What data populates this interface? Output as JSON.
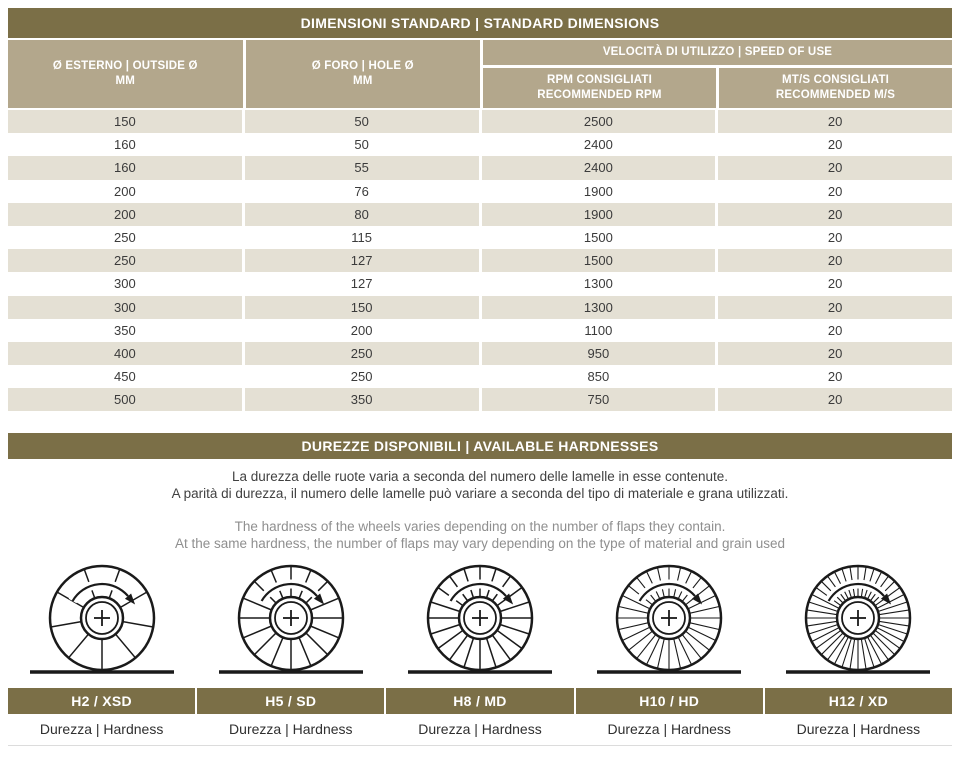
{
  "colors": {
    "olive": "#7b6f47",
    "header_tan": "#b3a78c",
    "row_stripe": "#e4e0d4"
  },
  "dimensions_table": {
    "title": "DIMENSIONI STANDARD | STANDARD DIMENSIONS",
    "columns": {
      "outside_diameter_line1": "Ø ESTERNO | OUTSIDE Ø",
      "outside_diameter_line2": "MM",
      "hole_diameter_line1": "Ø FORO | HOLE Ø",
      "hole_diameter_line2": "MM",
      "speed_group": "VELOCITÀ DI UTILIZZO | SPEED OF USE",
      "rpm_line1": "RPM CONSIGLIATI",
      "rpm_line2": "RECOMMENDED RPM",
      "ms_line1": "MT/S CONSIGLIATI",
      "ms_line2": "RECOMMENDED M/S"
    },
    "rows": [
      [
        "150",
        "50",
        "2500",
        "20"
      ],
      [
        "160",
        "50",
        "2400",
        "20"
      ],
      [
        "160",
        "55",
        "2400",
        "20"
      ],
      [
        "200",
        "76",
        "1900",
        "20"
      ],
      [
        "200",
        "80",
        "1900",
        "20"
      ],
      [
        "250",
        "115",
        "1500",
        "20"
      ],
      [
        "250",
        "127",
        "1500",
        "20"
      ],
      [
        "300",
        "127",
        "1300",
        "20"
      ],
      [
        "300",
        "150",
        "1300",
        "20"
      ],
      [
        "350",
        "200",
        "1100",
        "20"
      ],
      [
        "400",
        "250",
        "950",
        "20"
      ],
      [
        "450",
        "250",
        "850",
        "20"
      ],
      [
        "500",
        "350",
        "750",
        "20"
      ]
    ]
  },
  "hardness_section": {
    "title": "DUREZZE DISPONIBILI | AVAILABLE HARDNESSES",
    "description_it": [
      "La durezza delle ruote varia a seconda del numero delle lamelle in esse contenute.",
      "A parità di durezza, il numero delle lamelle può variare a seconda del tipo di materiale e grana utilizzati."
    ],
    "description_en": [
      "The hardness of the wheels varies depending on the number of flaps they contain.",
      "At the same hardness, the number of flaps may vary depending on the type of material and grain used"
    ],
    "wheels": [
      {
        "label": "H2 / XSD",
        "caption": "Durezza | Hardness",
        "flaps": 9
      },
      {
        "label": "H5 / SD",
        "caption": "Durezza | Hardness",
        "flaps": 16
      },
      {
        "label": "H8 / MD",
        "caption": "Durezza | Hardness",
        "flaps": 20
      },
      {
        "label": "H10 / HD",
        "caption": "Durezza | Hardness",
        "flaps": 28
      },
      {
        "label": "H12 / XD",
        "caption": "Durezza | Hardness",
        "flaps": 40
      }
    ]
  }
}
